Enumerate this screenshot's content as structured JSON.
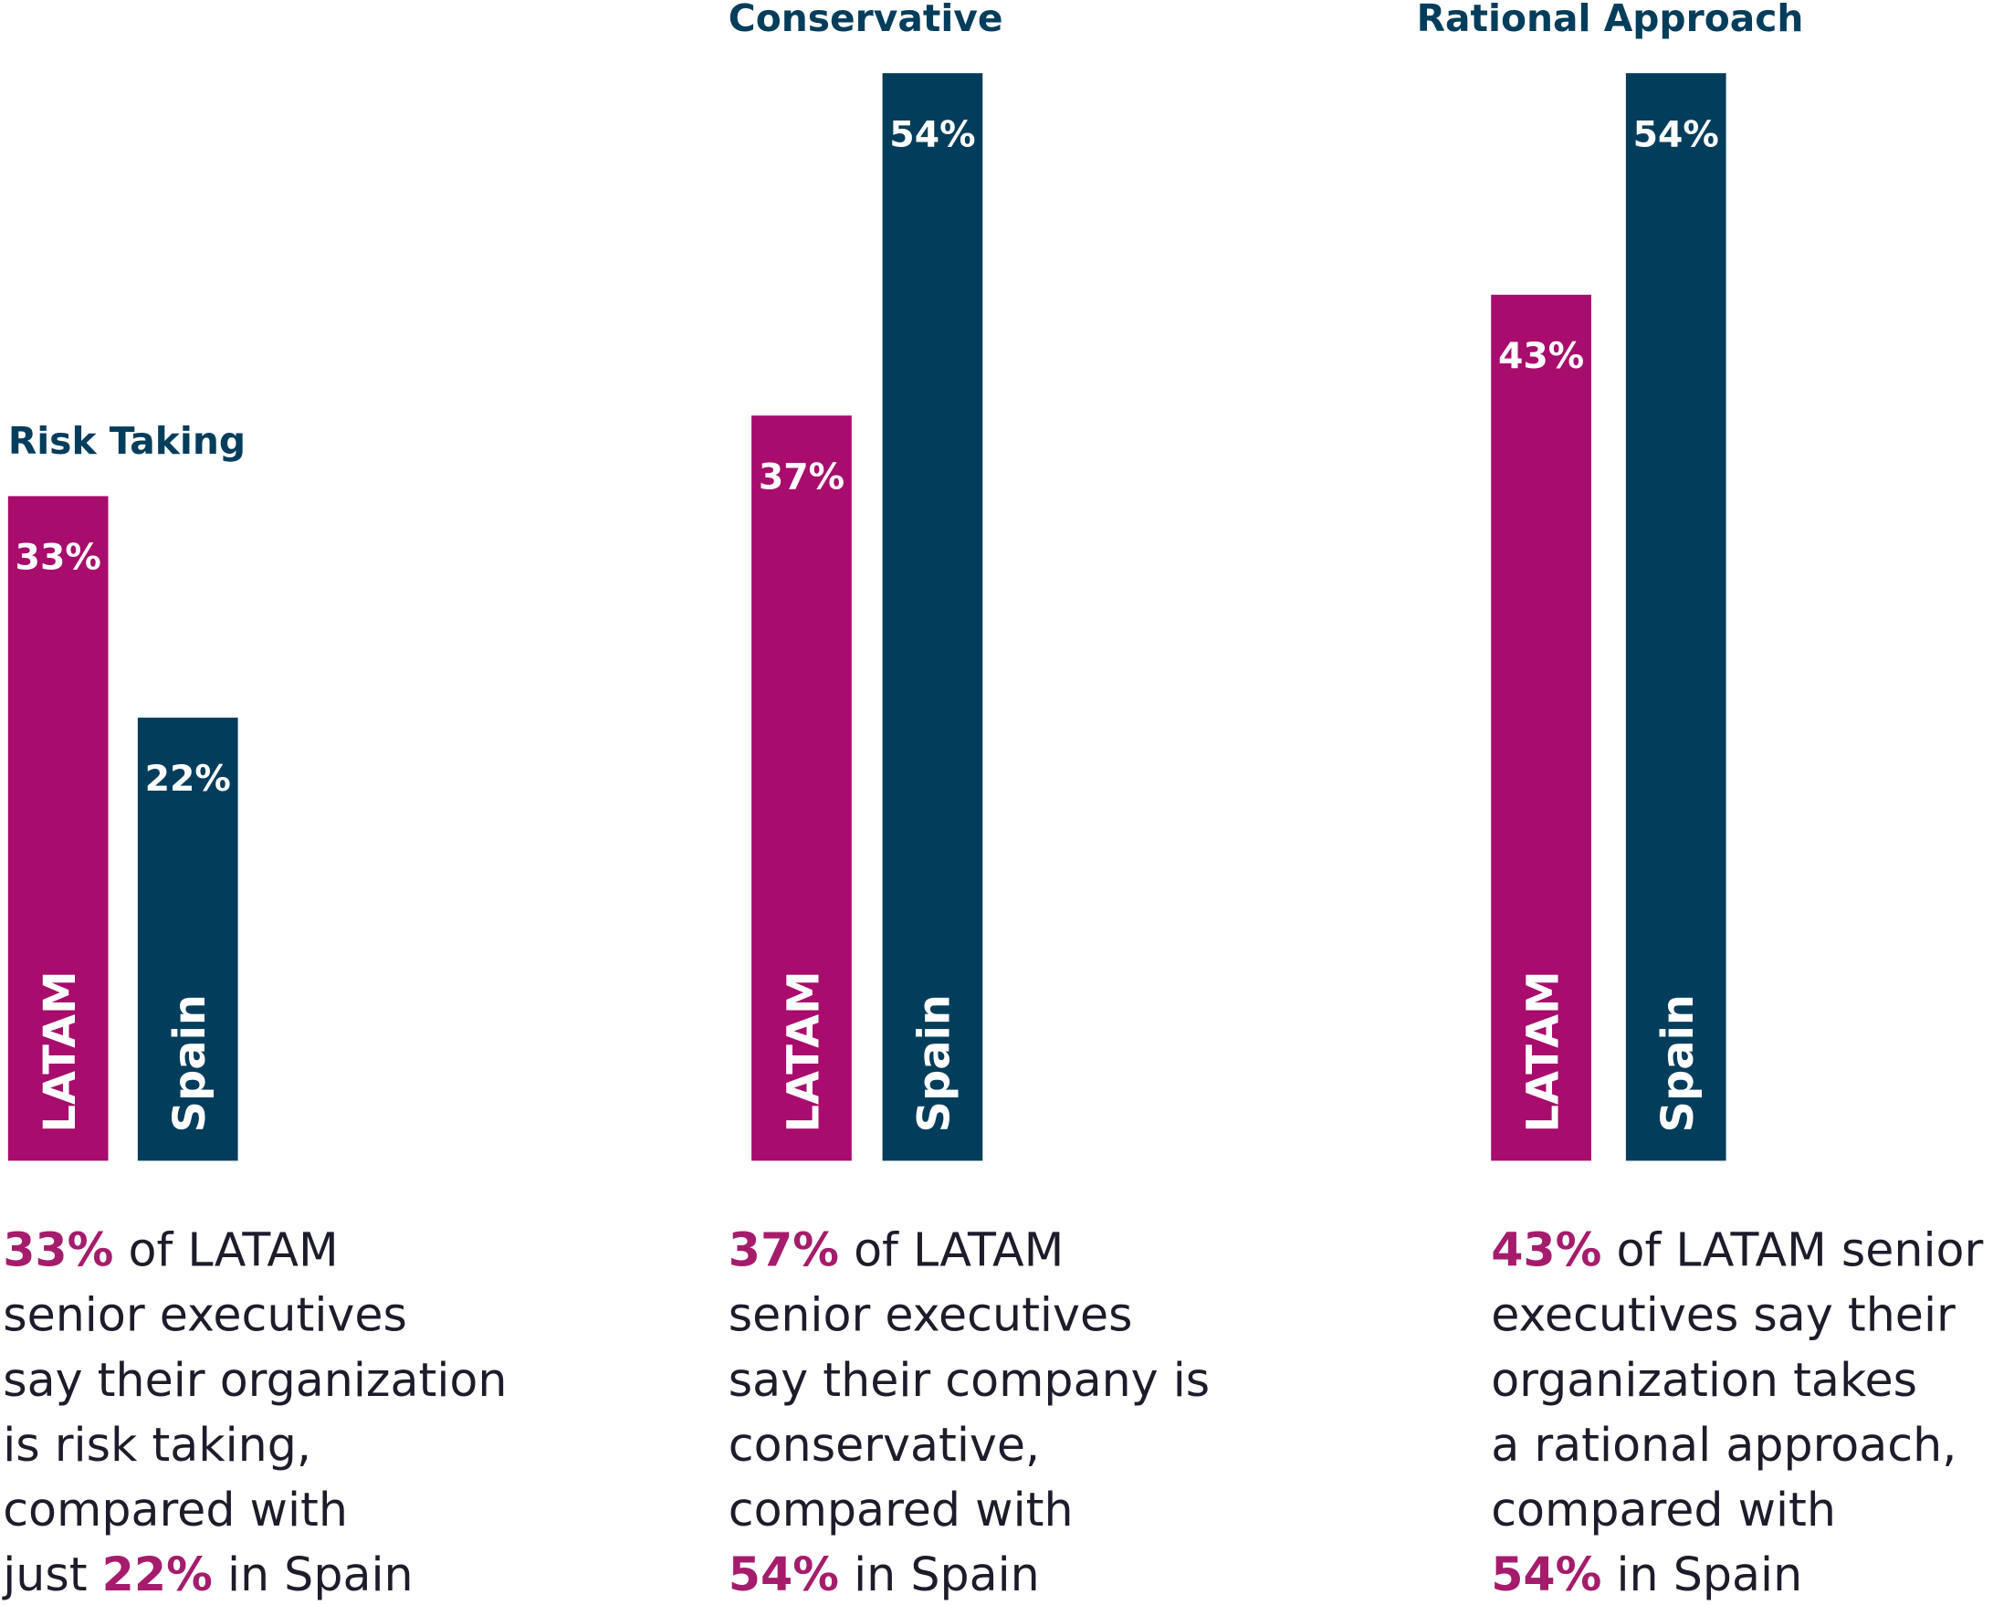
{
  "chart_data": [
    {
      "type": "bar",
      "title": "Risk Taking",
      "categories": [
        "LATAM",
        "Spain"
      ],
      "values": [
        33,
        22
      ],
      "value_labels": [
        "33%",
        "22%"
      ],
      "colors": [
        "#a80c6c",
        "#023d5c"
      ],
      "ylim": [
        0,
        54
      ],
      "caption": [
        [
          {
            "text": "33%",
            "bold": true
          },
          {
            "text": " of LATAM",
            "bold": false
          }
        ],
        [
          {
            "text": "senior executives",
            "bold": false
          }
        ],
        [
          {
            "text": "say their organization",
            "bold": false
          }
        ],
        [
          {
            "text": "is risk taking,",
            "bold": false
          }
        ],
        [
          {
            "text": "compared with",
            "bold": false
          }
        ],
        [
          {
            "text": "just ",
            "bold": false
          },
          {
            "text": "22%",
            "bold": true
          },
          {
            "text": " in Spain",
            "bold": false
          }
        ]
      ]
    },
    {
      "type": "bar",
      "title": "Conservative",
      "categories": [
        "LATAM",
        "Spain"
      ],
      "values": [
        37,
        54
      ],
      "value_labels": [
        "37%",
        "54%"
      ],
      "colors": [
        "#a80c6c",
        "#023d5c"
      ],
      "ylim": [
        0,
        54
      ],
      "caption": [
        [
          {
            "text": "37%",
            "bold": true
          },
          {
            "text": " of LATAM",
            "bold": false
          }
        ],
        [
          {
            "text": "senior executives",
            "bold": false
          }
        ],
        [
          {
            "text": "say their company is",
            "bold": false
          }
        ],
        [
          {
            "text": "conservative,",
            "bold": false
          }
        ],
        [
          {
            "text": "compared with",
            "bold": false
          }
        ],
        [
          {
            "text": "54%",
            "bold": true
          },
          {
            "text": " in Spain",
            "bold": false
          }
        ]
      ]
    },
    {
      "type": "bar",
      "title": "Rational Approach",
      "categories": [
        "LATAM",
        "Spain"
      ],
      "values": [
        43,
        54
      ],
      "value_labels": [
        "43%",
        "54%"
      ],
      "colors": [
        "#a80c6c",
        "#023d5c"
      ],
      "ylim": [
        0,
        54
      ],
      "caption": [
        [
          {
            "text": "43%",
            "bold": true
          },
          {
            "text": " of LATAM senior",
            "bold": false
          }
        ],
        [
          {
            "text": "executives say their",
            "bold": false
          }
        ],
        [
          {
            "text": "organization takes",
            "bold": false
          }
        ],
        [
          {
            "text": "a rational approach,",
            "bold": false
          }
        ],
        [
          {
            "text": "compared with",
            "bold": false
          }
        ],
        [
          {
            "text": "54%",
            "bold": true
          },
          {
            "text": " in Spain",
            "bold": false
          }
        ]
      ]
    }
  ]
}
